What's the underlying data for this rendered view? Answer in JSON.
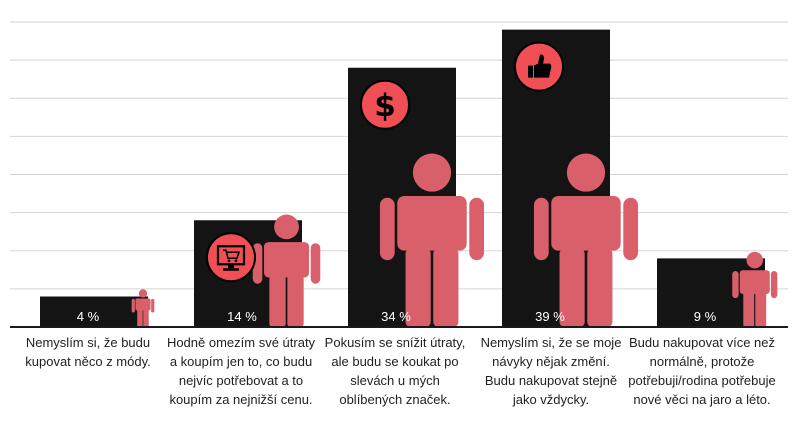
{
  "chart_data": {
    "type": "bar",
    "categories": [
      "Nemyslím si, že budu kupovat něco z módy.",
      "Hodně omezím své útraty a koupím jen to, co budu nejvíc potřebovat a to koupím za nejnižší cenu.",
      "Pokusím se snížit útraty, ale budu se koukat po slevách u mých oblíbených značek.",
      "Nemyslím si, že se moje návyky nějak změní. Budu nakupovat stejně jako vždycky.",
      "Budu nakupovat více než normálně, protože potřebuji/rodina potřebuje nové věci na jaro a léto."
    ],
    "values": [
      4,
      14,
      34,
      39,
      9
    ],
    "data_labels": [
      "4 %",
      "14 %",
      "34 %",
      "39 %",
      "9 %"
    ],
    "icons": [
      "",
      "shopping-cart-monitor-icon",
      "dollar-icon",
      "thumbs-up-icon",
      ""
    ],
    "ylim": [
      0,
      40
    ],
    "grid": true,
    "colors": {
      "bar": "#141414",
      "person": "#d9606b",
      "badge": "#f04f55",
      "grid": "#d5d5d5",
      "label": "#ffffff"
    }
  }
}
